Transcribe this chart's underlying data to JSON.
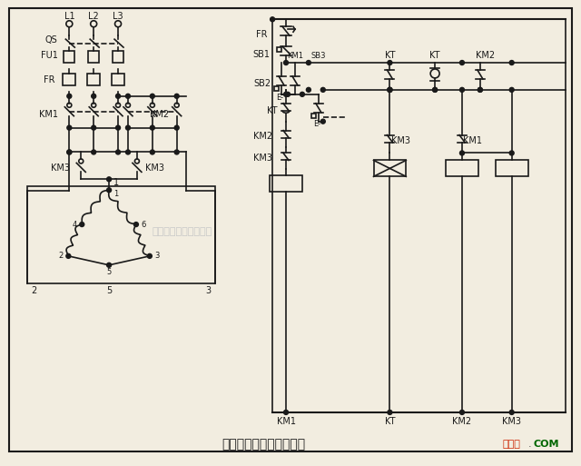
{
  "title": "双速电动机调速控制线路",
  "bg_color": "#f2ede0",
  "line_color": "#1a1a1a",
  "watermark_text": "杭州将睿科技有限公司",
  "watermark_color": "#c8c8c8",
  "logo_text": "接线图",
  "logo_color": "#cc2200",
  "logo_suffix": ".",
  "logo_com": "COM",
  "logo_suffix_color": "#006600",
  "border_color": "#444444"
}
